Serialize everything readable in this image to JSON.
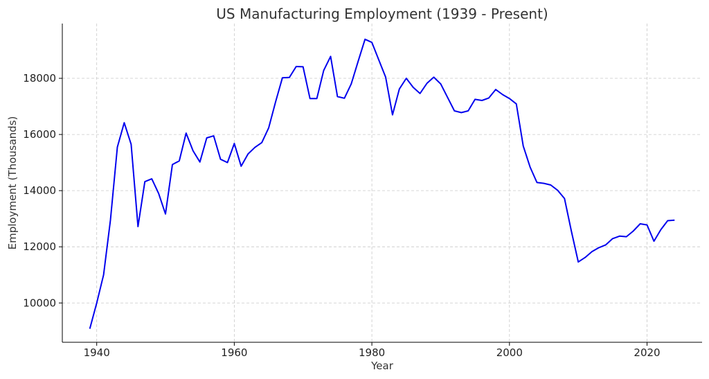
{
  "chart_data": {
    "type": "line",
    "title": "US Manufacturing Employment (1939 - Present)",
    "xlabel": "Year",
    "ylabel": "Employment (Thousands)",
    "xlim": [
      1935,
      2028
    ],
    "ylim": [
      8600,
      19950
    ],
    "xticks": [
      1940,
      1960,
      1980,
      2000,
      2020
    ],
    "yticks": [
      10000,
      12000,
      14000,
      16000,
      18000
    ],
    "grid": true,
    "line_color": "#0000ee",
    "series": [
      {
        "x": [
          1939,
          1940,
          1941,
          1942,
          1943,
          1944,
          1945,
          1946,
          1947,
          1948,
          1949,
          1950,
          1951,
          1952,
          1953,
          1954,
          1955,
          1956,
          1957,
          1958,
          1959,
          1960,
          1961,
          1962,
          1963,
          1964,
          1965,
          1966,
          1967,
          1968,
          1969,
          1970,
          1971,
          1972,
          1973,
          1974,
          1975,
          1976,
          1977,
          1978,
          1979,
          1980,
          1981,
          1982,
          1983,
          1984,
          1985,
          1986,
          1987,
          1988,
          1989,
          1990,
          1991,
          1992,
          1993,
          1994,
          1995,
          1996,
          1997,
          1998,
          1999,
          2000,
          2001,
          2002,
          2003,
          2004,
          2005,
          2006,
          2007,
          2008,
          2009,
          2010,
          2011,
          2012,
          2013,
          2014,
          2015,
          2016,
          2017,
          2018,
          2019,
          2020,
          2021,
          2022,
          2023,
          2024
        ],
        "values": [
          9080,
          10000,
          11000,
          12950,
          15550,
          16420,
          15650,
          12720,
          14320,
          14420,
          13900,
          13170,
          14930,
          15060,
          16050,
          15420,
          15020,
          15880,
          15950,
          15120,
          15000,
          15680,
          14870,
          15310,
          15540,
          15710,
          16240,
          17160,
          18020,
          18030,
          18420,
          18410,
          17280,
          17280,
          18280,
          18780,
          17350,
          17290,
          17800,
          18600,
          19390,
          19280,
          18660,
          18040,
          16700,
          17620,
          18000,
          17680,
          17460,
          17820,
          18040,
          17800,
          17320,
          16840,
          16780,
          16840,
          17250,
          17210,
          17300,
          17600,
          17420,
          17280,
          17090,
          15590,
          14840,
          14290,
          14260,
          14200,
          14010,
          13720,
          12560,
          11460,
          11620,
          11830,
          11970,
          12070,
          12290,
          12380,
          12360,
          12560,
          12820,
          12780,
          12200,
          12610,
          12930,
          12950
        ]
      }
    ]
  }
}
